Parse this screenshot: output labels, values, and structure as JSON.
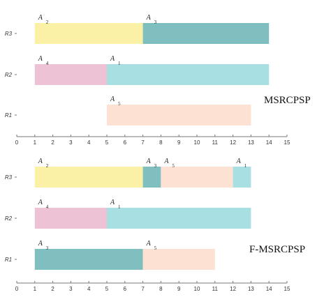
{
  "chart_data": [
    {
      "type": "gantt",
      "title": "MSRCPSP",
      "resources": [
        "R3",
        "R2",
        "R1"
      ],
      "x_ticks": [
        0,
        1,
        2,
        3,
        4,
        5,
        6,
        7,
        8,
        9,
        10,
        11,
        12,
        13,
        14,
        15
      ],
      "xlim": [
        0,
        15
      ],
      "tasks": [
        {
          "resource": "R3",
          "activity": "A",
          "index": "2",
          "start": 1,
          "end": 7,
          "color": "#fbf1a6"
        },
        {
          "resource": "R3",
          "activity": "A",
          "index": "3",
          "start": 7,
          "end": 14,
          "color": "#7fbfbf"
        },
        {
          "resource": "R2",
          "activity": "A",
          "index": "4",
          "start": 1,
          "end": 5,
          "color": "#ecc2d4"
        },
        {
          "resource": "R2",
          "activity": "A",
          "index": "1",
          "start": 5,
          "end": 14,
          "color": "#a7dfe3"
        },
        {
          "resource": "R1",
          "activity": "A",
          "index": "5",
          "start": 5,
          "end": 13,
          "color": "#fde2d4"
        }
      ]
    },
    {
      "type": "gantt",
      "title": "F-MSRCPSP",
      "resources": [
        "R3",
        "R2",
        "R1"
      ],
      "x_ticks": [
        0,
        1,
        2,
        3,
        4,
        5,
        6,
        7,
        8,
        9,
        10,
        11,
        12,
        13,
        14,
        15
      ],
      "xlim": [
        0,
        15
      ],
      "tasks": [
        {
          "resource": "R3",
          "activity": "A",
          "index": "2",
          "start": 1,
          "end": 7,
          "color": "#fbf1a6"
        },
        {
          "resource": "R3",
          "activity": "A",
          "index": "3",
          "start": 7,
          "end": 8,
          "color": "#7fbfbf"
        },
        {
          "resource": "R3",
          "activity": "A",
          "index": "5",
          "start": 8,
          "end": 12,
          "color": "#fde2d4"
        },
        {
          "resource": "R3",
          "activity": "A",
          "index": "1",
          "start": 12,
          "end": 13,
          "color": "#a7dfe3"
        },
        {
          "resource": "R2",
          "activity": "A",
          "index": "4",
          "start": 1,
          "end": 5,
          "color": "#ecc2d4"
        },
        {
          "resource": "R2",
          "activity": "A",
          "index": "1",
          "start": 5,
          "end": 13,
          "color": "#a7dfe3"
        },
        {
          "resource": "R1",
          "activity": "A",
          "index": "3",
          "start": 1,
          "end": 7,
          "color": "#7fbfbf"
        },
        {
          "resource": "R1",
          "activity": "A",
          "index": "5",
          "start": 7,
          "end": 11,
          "color": "#fde2d4"
        }
      ]
    }
  ]
}
